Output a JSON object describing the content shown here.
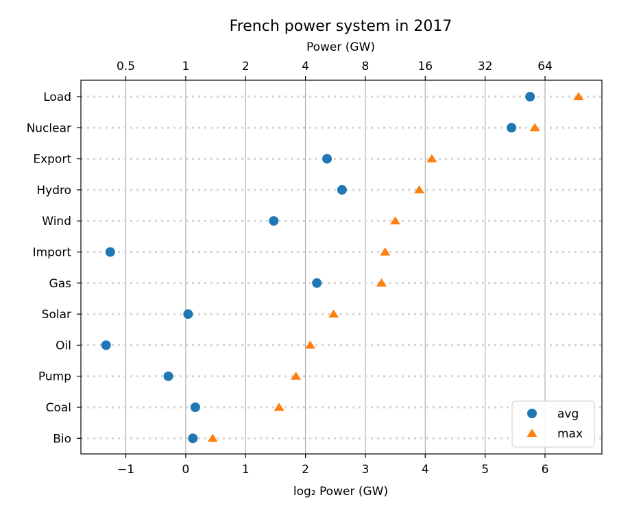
{
  "chart_data": {
    "type": "scatter",
    "title": "French power system in 2017",
    "xlabel": "log₂ Power (GW)",
    "x2label": "Power (GW)",
    "xlim": [
      -1.75,
      6.95
    ],
    "xticks": [
      -1,
      0,
      1,
      2,
      3,
      4,
      5,
      6
    ],
    "xtick_labels": [
      "−1",
      "0",
      "1",
      "2",
      "3",
      "4",
      "5",
      "6"
    ],
    "x2ticks": [
      -1,
      0,
      1,
      2,
      3,
      4,
      5,
      6
    ],
    "x2tick_labels": [
      "0.5",
      "1",
      "2",
      "4",
      "8",
      "16",
      "32",
      "64"
    ],
    "categories": [
      "Load",
      "Nuclear",
      "Export",
      "Hydro",
      "Wind",
      "Import",
      "Gas",
      "Solar",
      "Oil",
      "Pump",
      "Coal",
      "Bio"
    ],
    "series": [
      {
        "name": "avg",
        "marker": "circle",
        "color": "#1f77b4",
        "values": [
          5.75,
          5.44,
          2.36,
          2.61,
          1.47,
          -1.26,
          2.19,
          0.04,
          -1.33,
          -0.29,
          0.16,
          0.12
        ]
      },
      {
        "name": "max",
        "marker": "triangle",
        "color": "#ff7f0e",
        "values": [
          6.56,
          5.83,
          4.11,
          3.9,
          3.5,
          3.33,
          3.27,
          2.47,
          2.08,
          1.84,
          1.56,
          0.45
        ]
      }
    ],
    "grid": "vertical",
    "legend_position": "lower-right"
  }
}
